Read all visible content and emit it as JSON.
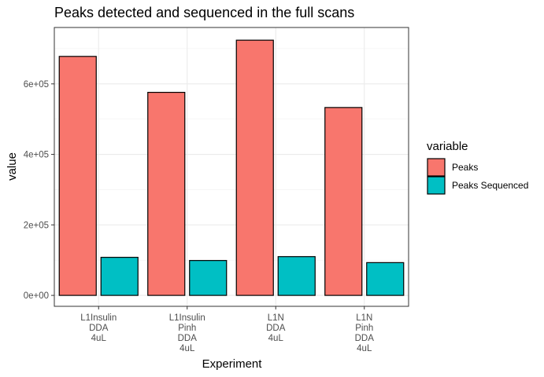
{
  "chart_data": {
    "type": "bar",
    "title": "Peaks detected and sequenced in the full scans",
    "xlabel": "Experiment",
    "ylabel": "value",
    "categories": [
      [
        "L1Insulin",
        "DDA",
        "4uL"
      ],
      [
        "L1Insulin",
        "Pinh",
        "DDA",
        "4uL"
      ],
      [
        "L1N",
        "DDA",
        "4uL"
      ],
      [
        "L1N",
        "Pinh",
        "DDA",
        "4uL"
      ]
    ],
    "series": [
      {
        "name": "Peaks",
        "color": "#F8766D",
        "values": [
          678000,
          576000,
          724000,
          533000
        ]
      },
      {
        "name": "Peaks Sequenced",
        "color": "#00BFC4",
        "values": [
          108000,
          99000,
          110000,
          93000
        ]
      }
    ],
    "ylim": [
      -31000,
      760000
    ],
    "yticks": [
      0,
      200000,
      400000,
      600000
    ],
    "ytick_labels": [
      "0e+00",
      "2e+05",
      "4e+05",
      "6e+05"
    ],
    "grid": true,
    "legend": {
      "title": "variable",
      "position": "right"
    }
  }
}
